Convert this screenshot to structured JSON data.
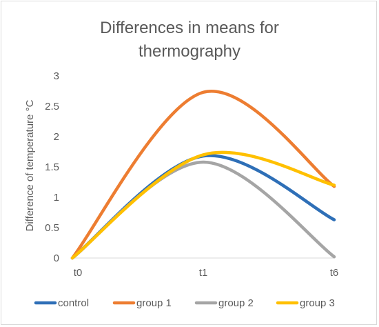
{
  "chart_data": {
    "type": "line",
    "title_line1": "Differences in means for",
    "title_line2": "thermography",
    "xlabel": "",
    "ylabel": "Difference of temperature  °C",
    "categories": [
      "t0",
      "t1",
      "t6"
    ],
    "ylim": [
      0,
      3
    ],
    "yticks": [
      "0",
      "0.5",
      "1",
      "1.5",
      "2",
      "2.5",
      "3"
    ],
    "grid": false,
    "smooth": true,
    "legend_position": "bottom",
    "series": [
      {
        "name": "control",
        "color": "#2e6fb7",
        "values": [
          0,
          1.68,
          0.63
        ]
      },
      {
        "name": "group 1",
        "color": "#ed7d31",
        "values": [
          0,
          2.73,
          1.18
        ]
      },
      {
        "name": "group 2",
        "color": "#a5a5a5",
        "values": [
          0,
          1.58,
          0.02
        ]
      },
      {
        "name": "group 3",
        "color": "#ffc000",
        "values": [
          0,
          1.7,
          1.2
        ]
      }
    ]
  }
}
